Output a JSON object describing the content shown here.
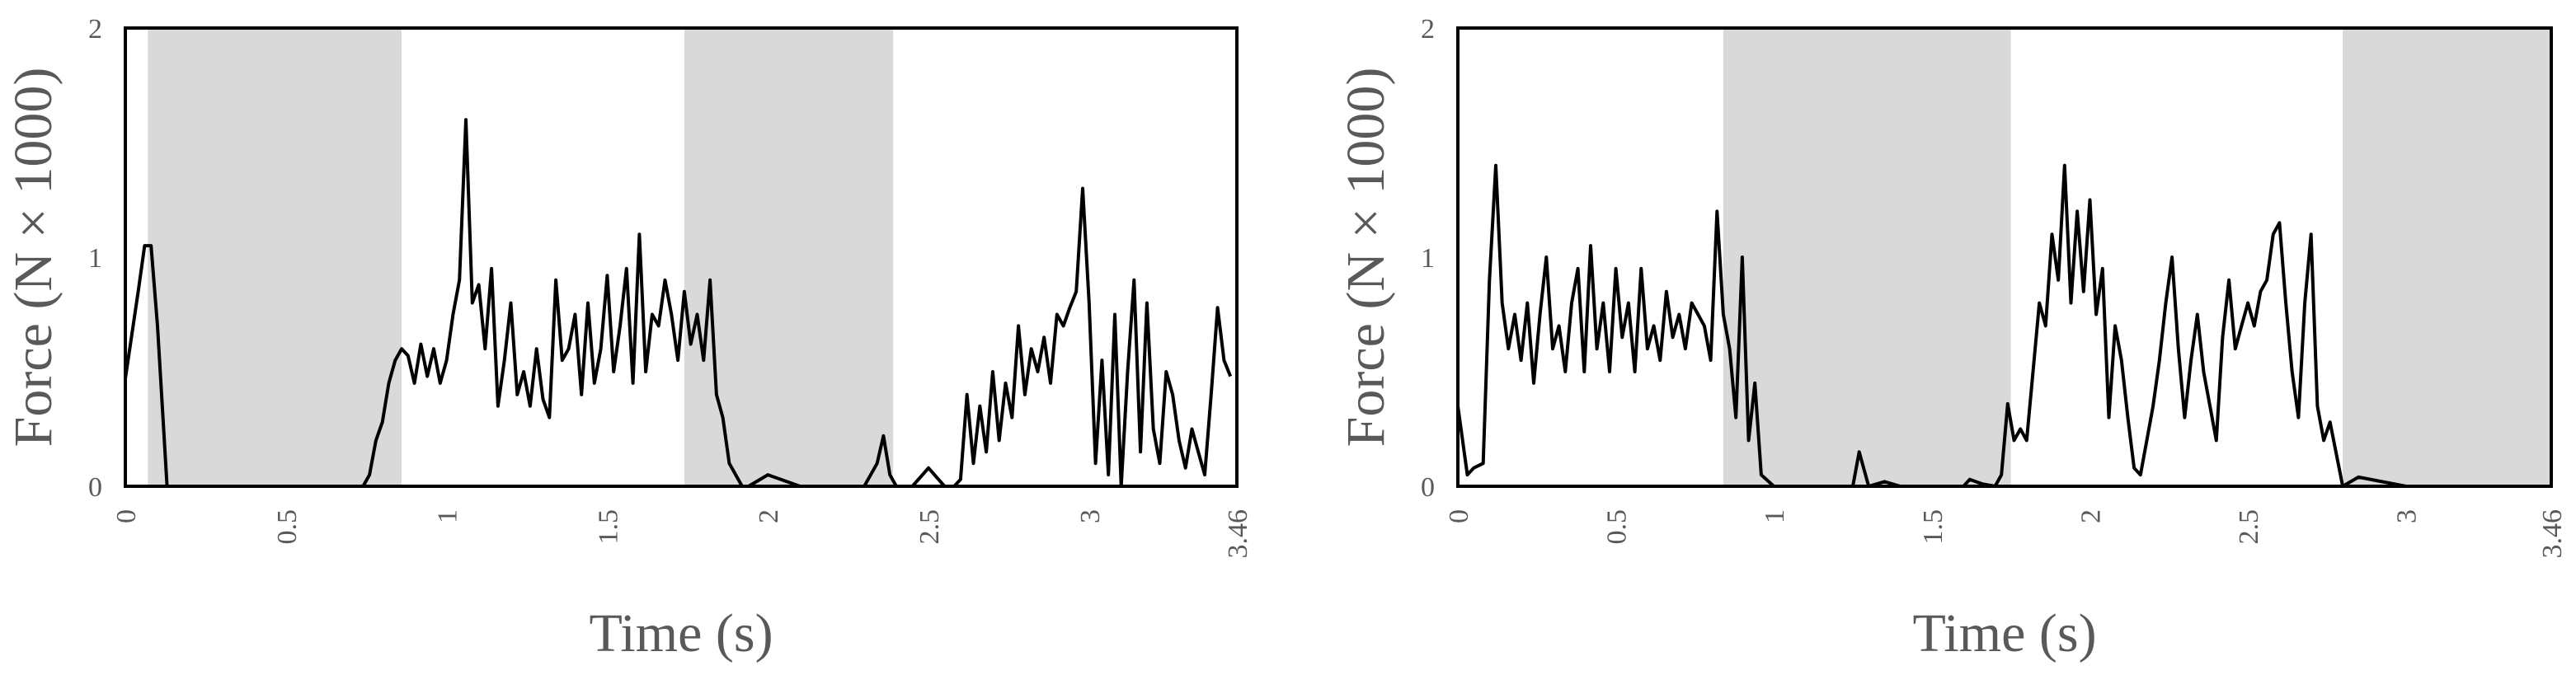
{
  "colors": {
    "line": "#000000",
    "shade": "#d9d9d9",
    "frame": "#000000",
    "text": "#595959"
  },
  "chart_data": [
    {
      "type": "line",
      "title": "",
      "xlabel": "Time (s)",
      "ylabel": "Force (N × 1000)",
      "xlim": [
        0,
        3.46
      ],
      "ylim": [
        0,
        2
      ],
      "xticks": [
        0,
        0.5,
        1,
        1.5,
        2,
        2.5,
        3,
        3.46
      ],
      "xtick_labels": [
        "0",
        "0.5",
        "1",
        "1.5",
        "2",
        "2.5",
        "3",
        "3.46"
      ],
      "yticks": [
        0,
        1,
        2
      ],
      "ytick_labels": [
        "0",
        "1",
        "2"
      ],
      "grid": false,
      "legend": "none",
      "shaded_intervals": [
        [
          0.07,
          0.86
        ],
        [
          1.74,
          2.39
        ]
      ],
      "x": [
        0,
        0.04,
        0.06,
        0.08,
        0.1,
        0.13,
        0.2,
        0.4,
        0.6,
        0.74,
        0.76,
        0.78,
        0.8,
        0.82,
        0.84,
        0.86,
        0.88,
        0.9,
        0.92,
        0.94,
        0.96,
        0.98,
        1.0,
        1.02,
        1.04,
        1.06,
        1.08,
        1.1,
        1.12,
        1.14,
        1.16,
        1.18,
        1.2,
        1.22,
        1.24,
        1.26,
        1.28,
        1.3,
        1.32,
        1.34,
        1.36,
        1.38,
        1.4,
        1.42,
        1.44,
        1.46,
        1.48,
        1.5,
        1.52,
        1.54,
        1.56,
        1.58,
        1.6,
        1.62,
        1.64,
        1.66,
        1.68,
        1.7,
        1.72,
        1.74,
        1.76,
        1.78,
        1.8,
        1.82,
        1.84,
        1.86,
        1.88,
        1.9,
        1.92,
        1.94,
        2.0,
        2.1,
        2.2,
        2.3,
        2.34,
        2.36,
        2.38,
        2.4,
        2.45,
        2.5,
        2.55,
        2.58,
        2.6,
        2.62,
        2.64,
        2.66,
        2.68,
        2.7,
        2.72,
        2.74,
        2.76,
        2.78,
        2.8,
        2.82,
        2.84,
        2.86,
        2.88,
        2.9,
        2.92,
        2.94,
        2.96,
        2.98,
        3.0,
        3.02,
        3.04,
        3.06,
        3.08,
        3.1,
        3.12,
        3.14,
        3.16,
        3.18,
        3.2,
        3.22,
        3.24,
        3.26,
        3.28,
        3.3,
        3.32,
        3.34,
        3.36,
        3.38,
        3.4,
        3.42,
        3.44
      ],
      "y": [
        0.47,
        0.85,
        1.05,
        1.05,
        0.7,
        0,
        0,
        0,
        0,
        0,
        0.05,
        0.2,
        0.28,
        0.45,
        0.55,
        0.6,
        0.57,
        0.45,
        0.62,
        0.48,
        0.6,
        0.45,
        0.55,
        0.75,
        0.9,
        1.6,
        0.8,
        0.88,
        0.6,
        0.95,
        0.35,
        0.55,
        0.8,
        0.4,
        0.5,
        0.35,
        0.6,
        0.38,
        0.3,
        0.9,
        0.55,
        0.6,
        0.75,
        0.4,
        0.8,
        0.45,
        0.6,
        0.92,
        0.5,
        0.7,
        0.95,
        0.45,
        1.1,
        0.5,
        0.75,
        0.7,
        0.9,
        0.75,
        0.55,
        0.85,
        0.62,
        0.75,
        0.55,
        0.9,
        0.4,
        0.3,
        0.1,
        0.05,
        0,
        0,
        0.05,
        0,
        0,
        0,
        0.1,
        0.22,
        0.05,
        0,
        0,
        0.08,
        0,
        0,
        0.03,
        0.4,
        0.1,
        0.35,
        0.15,
        0.5,
        0.2,
        0.45,
        0.3,
        0.7,
        0.4,
        0.6,
        0.5,
        0.65,
        0.45,
        0.75,
        0.7,
        0.78,
        0.85,
        1.3,
        0.8,
        0.1,
        0.55,
        0.05,
        0.75,
        0,
        0.5,
        0.9,
        0.15,
        0.8,
        0.25,
        0.1,
        0.5,
        0.4,
        0.2,
        0.08,
        0.25,
        0.15,
        0.05,
        0.4,
        0.78,
        0.55,
        0.48
      ]
    },
    {
      "type": "line",
      "title": "",
      "xlabel": "Time (s)",
      "ylabel": "Force (N × 1000)",
      "xlim": [
        0,
        3.46
      ],
      "ylim": [
        0,
        2
      ],
      "xticks": [
        0,
        0.5,
        1,
        1.5,
        2,
        2.5,
        3,
        3.46
      ],
      "xtick_labels": [
        "0",
        "0.5",
        "1",
        "1.5",
        "2",
        "2.5",
        "3",
        "3.46"
      ],
      "yticks": [
        0,
        1,
        2
      ],
      "ytick_labels": [
        "0",
        "1",
        "2"
      ],
      "grid": false,
      "legend": "none",
      "shaded_intervals": [
        [
          0.84,
          1.75
        ],
        [
          2.8,
          3.46
        ]
      ],
      "x": [
        0,
        0.03,
        0.05,
        0.08,
        0.1,
        0.12,
        0.14,
        0.16,
        0.18,
        0.2,
        0.22,
        0.24,
        0.26,
        0.28,
        0.3,
        0.32,
        0.34,
        0.36,
        0.38,
        0.4,
        0.42,
        0.44,
        0.46,
        0.48,
        0.5,
        0.52,
        0.54,
        0.56,
        0.58,
        0.6,
        0.62,
        0.64,
        0.66,
        0.68,
        0.7,
        0.72,
        0.74,
        0.76,
        0.78,
        0.8,
        0.82,
        0.84,
        0.86,
        0.88,
        0.9,
        0.92,
        0.94,
        0.96,
        1.0,
        1.1,
        1.2,
        1.25,
        1.27,
        1.3,
        1.35,
        1.4,
        1.5,
        1.6,
        1.62,
        1.66,
        1.7,
        1.72,
        1.74,
        1.76,
        1.78,
        1.8,
        1.82,
        1.84,
        1.86,
        1.88,
        1.9,
        1.92,
        1.94,
        1.96,
        1.98,
        2.0,
        2.02,
        2.04,
        2.06,
        2.08,
        2.1,
        2.12,
        2.14,
        2.16,
        2.18,
        2.2,
        2.22,
        2.24,
        2.26,
        2.28,
        2.3,
        2.32,
        2.34,
        2.36,
        2.38,
        2.4,
        2.42,
        2.44,
        2.46,
        2.48,
        2.5,
        2.52,
        2.54,
        2.56,
        2.58,
        2.6,
        2.62,
        2.64,
        2.66,
        2.68,
        2.7,
        2.72,
        2.74,
        2.76,
        2.8,
        2.85,
        3.0,
        3.46
      ],
      "y": [
        0.35,
        0.05,
        0.08,
        0.1,
        0.9,
        1.4,
        0.8,
        0.6,
        0.75,
        0.55,
        0.8,
        0.45,
        0.75,
        1.0,
        0.6,
        0.7,
        0.5,
        0.8,
        0.95,
        0.5,
        1.05,
        0.6,
        0.8,
        0.5,
        0.95,
        0.65,
        0.8,
        0.5,
        0.95,
        0.6,
        0.7,
        0.55,
        0.85,
        0.65,
        0.75,
        0.6,
        0.8,
        0.75,
        0.7,
        0.55,
        1.2,
        0.75,
        0.6,
        0.3,
        1.0,
        0.2,
        0.45,
        0.05,
        0,
        0,
        0,
        0,
        0.15,
        0,
        0.02,
        0,
        0,
        0,
        0.03,
        0.01,
        0,
        0.05,
        0.36,
        0.2,
        0.25,
        0.2,
        0.5,
        0.8,
        0.7,
        1.1,
        0.9,
        1.4,
        0.8,
        1.2,
        0.85,
        1.25,
        0.75,
        0.95,
        0.3,
        0.7,
        0.55,
        0.3,
        0.08,
        0.05,
        0.2,
        0.35,
        0.55,
        0.8,
        1.0,
        0.6,
        0.3,
        0.55,
        0.75,
        0.5,
        0.35,
        0.2,
        0.65,
        0.9,
        0.6,
        0.7,
        0.8,
        0.7,
        0.85,
        0.9,
        1.1,
        1.15,
        0.8,
        0.5,
        0.3,
        0.8,
        1.1,
        0.35,
        0.2,
        0.28,
        0,
        0.04,
        0,
        0
      ]
    }
  ]
}
